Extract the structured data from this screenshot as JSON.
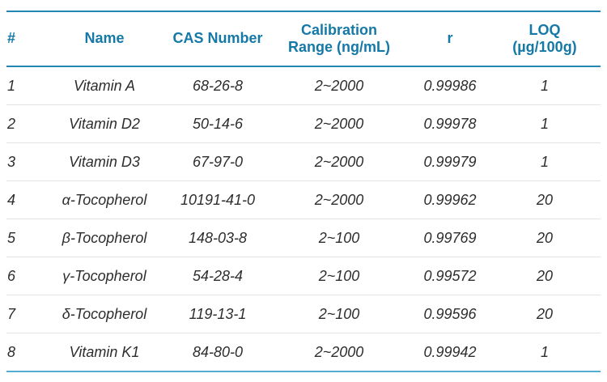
{
  "table": {
    "columns": [
      {
        "label": "#",
        "label2": ""
      },
      {
        "label": "Name",
        "label2": ""
      },
      {
        "label": "CAS Number",
        "label2": ""
      },
      {
        "label": "Calibration",
        "label2": "Range (ng/mL)"
      },
      {
        "label": "r",
        "label2": ""
      },
      {
        "label": "LOQ",
        "label2": "(µg/100g)"
      }
    ],
    "rows": [
      {
        "num": "1",
        "name": "Vitamin A",
        "cas": "68-26-8",
        "range": "2~2000",
        "r": "0.99986",
        "loq": "1"
      },
      {
        "num": "2",
        "name": "Vitamin D2",
        "cas": "50-14-6",
        "range": "2~2000",
        "r": "0.99978",
        "loq": "1"
      },
      {
        "num": "3",
        "name": "Vitamin D3",
        "cas": "67-97-0",
        "range": "2~2000",
        "r": "0.99979",
        "loq": "1"
      },
      {
        "num": "4",
        "name": "α-Tocopherol",
        "cas": "10191-41-0",
        "range": "2~2000",
        "r": "0.99962",
        "loq": "20"
      },
      {
        "num": "5",
        "name": "β-Tocopherol",
        "cas": "148-03-8",
        "range": "2~100",
        "r": "0.99769",
        "loq": "20"
      },
      {
        "num": "6",
        "name": "γ-Tocopherol",
        "cas": "54-28-4",
        "range": "2~100",
        "r": "0.99572",
        "loq": "20"
      },
      {
        "num": "7",
        "name": "δ-Tocopherol",
        "cas": "119-13-1",
        "range": "2~100",
        "r": "0.99596",
        "loq": "20"
      },
      {
        "num": "8",
        "name": "Vitamin K1",
        "cas": "84-80-0",
        "range": "2~2000",
        "r": "0.99942",
        "loq": "1"
      }
    ]
  },
  "colors": {
    "header_text": "#1579a7",
    "body_text": "#2d2d2d",
    "accent_border": "#2484b2",
    "bottom_border": "#55acd2",
    "row_divider": "#e2e2e2"
  }
}
